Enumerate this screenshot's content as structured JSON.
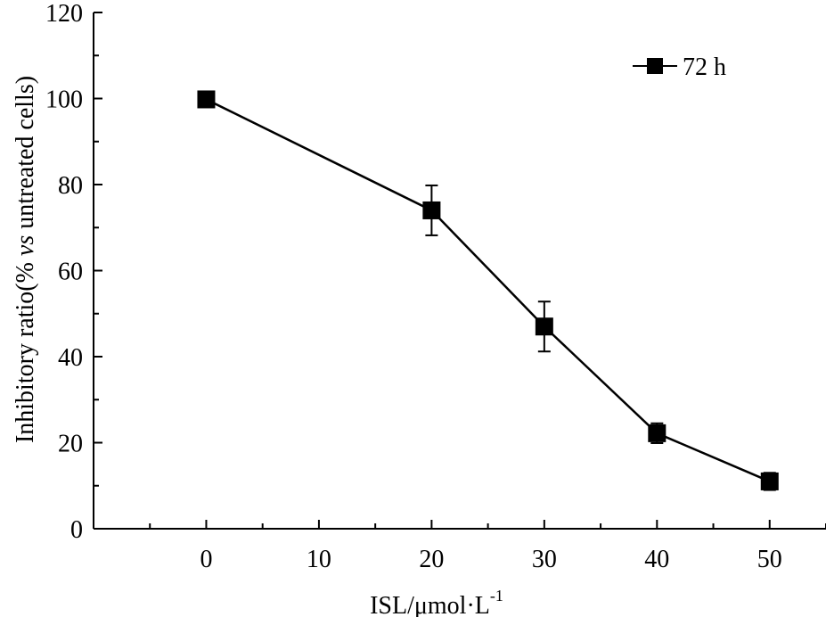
{
  "chart_data": {
    "type": "line",
    "title": "",
    "xlabel": "ISL/μmol·L",
    "xlabel_superscript": "-1",
    "ylabel_prefix": "Inhibitory ratio(% ",
    "ylabel_italic": "vs",
    "ylabel_suffix": " untreated cells)",
    "xlim": [
      -10,
      55
    ],
    "ylim": [
      0,
      120
    ],
    "x_ticks": [
      0,
      10,
      20,
      30,
      40,
      50
    ],
    "y_ticks": [
      0,
      20,
      40,
      60,
      80,
      100,
      120
    ],
    "x_tick_labels": [
      "0",
      "10",
      "20",
      "30",
      "40",
      "50"
    ],
    "y_tick_labels": [
      "0",
      "20",
      "40",
      "60",
      "80",
      "100",
      "120"
    ],
    "legend_position": "top-right",
    "series": [
      {
        "name": "72 h",
        "marker": "square",
        "color": "#000000",
        "x": [
          0,
          20,
          30,
          40,
          50
        ],
        "y": [
          99.8,
          74,
          47,
          22.2,
          11
        ],
        "error": [
          0,
          5.8,
          5.8,
          2.3,
          2
        ]
      }
    ]
  }
}
